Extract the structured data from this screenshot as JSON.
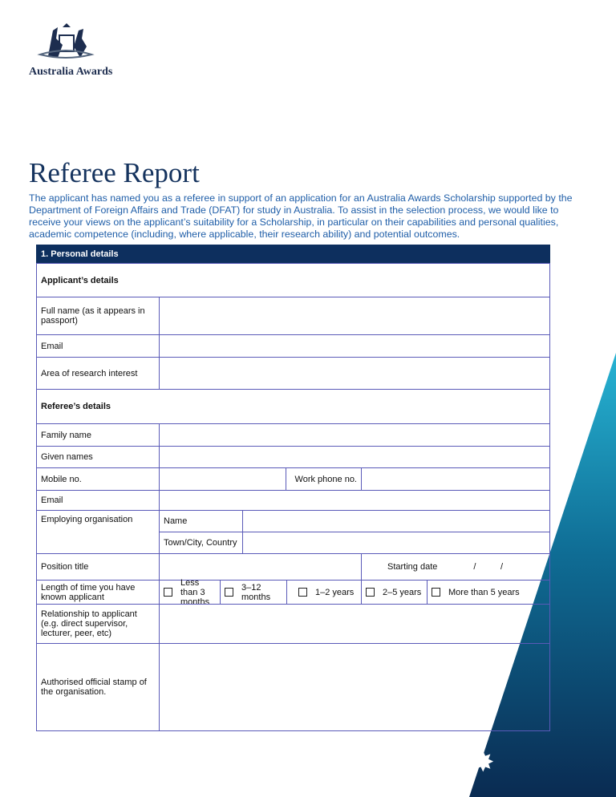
{
  "logo": {
    "text": "Australia Awards"
  },
  "title": "Referee Report",
  "intro": "The applicant has named you as a referee in support of an application for an Australia Awards Scholarship supported by the Department of Foreign Affairs and Trade (DFAT) for study in Australia. To assist in the selection process, we would like to receive your views on the applicant’s suitability for a Scholarship, in particular on their capabilities and personal qualities, academic competence (including, where applicable, their research ability) and potential outcomes.",
  "section": "1.  Personal details",
  "applicant": {
    "heading": "Applicant’s details",
    "full_name": "Full name (as it appears in passport)",
    "email": "Email",
    "research": "Area of research interest"
  },
  "referee": {
    "heading": "Referee’s details",
    "family": "Family name",
    "given": "Given names",
    "mobile": "Mobile no.",
    "work_phone": "Work phone no.",
    "email": "Email",
    "employing": "Employing organisation",
    "org_name": "Name",
    "town": "Town/City, Country",
    "position": "Position title",
    "starting_date": "Starting date",
    "date_sep": "/          /",
    "length": "Length of time you have known applicant",
    "options": [
      "Less than 3 months",
      "3–12 months",
      "1–2 years",
      "2–5 years",
      "More than 5 years"
    ],
    "relationship": "Relationship to applicant (e.g. direct supervisor, lecturer, peer, etc)",
    "stamp": "Authorised official stamp of the organisation."
  },
  "colors": {
    "navy": "#0d2f5e",
    "accent": "#1f5ea8"
  }
}
